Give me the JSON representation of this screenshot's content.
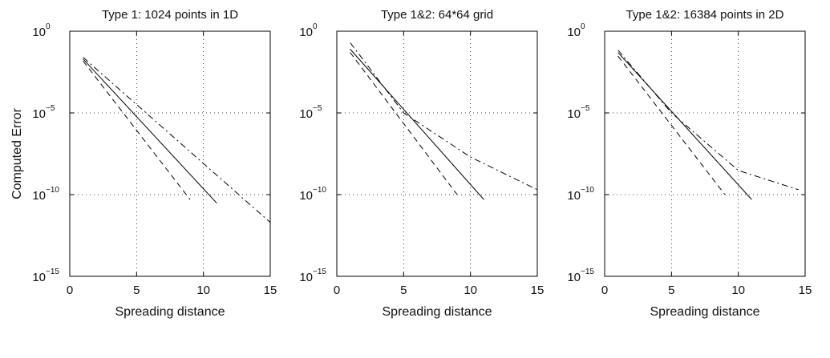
{
  "chart_data": [
    {
      "type": "line",
      "title": "Type 1: 1024 points in 1D",
      "xlabel": "Spreading distance",
      "ylabel": "Computed Error",
      "xlim": [
        0,
        15
      ],
      "ylim_log10": [
        -15,
        0
      ],
      "xticks": [
        "0",
        "5",
        "10",
        "15"
      ],
      "yscale": "log",
      "grid": true,
      "series": [
        {
          "style": "solid",
          "x": [
            1,
            11
          ],
          "y": [
            0.02,
            3e-11
          ]
        },
        {
          "style": "dashed",
          "x": [
            1,
            9
          ],
          "y": [
            0.015,
            5e-11
          ]
        },
        {
          "style": "dashdot",
          "x": [
            1,
            15
          ],
          "y": [
            0.025,
            2e-12
          ]
        }
      ]
    },
    {
      "type": "line",
      "title": "Type 1&2: 64*64 grid",
      "xlabel": "Spreading distance",
      "ylabel": "",
      "xlim": [
        0,
        15
      ],
      "ylim_log10": [
        -15,
        0
      ],
      "xticks": [
        "0",
        "5",
        "10",
        "15"
      ],
      "yscale": "log",
      "grid": true,
      "series": [
        {
          "style": "solid",
          "x": [
            1,
            11
          ],
          "y": [
            0.08,
            5e-11
          ]
        },
        {
          "style": "dashed",
          "x": [
            1,
            9
          ],
          "y": [
            0.05,
            1e-10
          ]
        },
        {
          "style": "dashdot",
          "x": [
            1,
            5,
            10,
            15
          ],
          "y": [
            0.2,
            1e-05,
            2e-08,
            2e-10
          ]
        }
      ]
    },
    {
      "type": "line",
      "title": "Type 1&2: 16384 points in 2D",
      "xlabel": "Spreading distance",
      "ylabel": "",
      "xlim": [
        0,
        15
      ],
      "ylim_log10": [
        -15,
        0
      ],
      "xticks": [
        "0",
        "5",
        "10",
        "15"
      ],
      "yscale": "log",
      "grid": true,
      "series": [
        {
          "style": "solid",
          "x": [
            1,
            11
          ],
          "y": [
            0.05,
            5e-11
          ]
        },
        {
          "style": "dashed",
          "x": [
            1,
            9
          ],
          "y": [
            0.03,
            1e-10
          ]
        },
        {
          "style": "dashdot",
          "x": [
            1,
            5,
            10,
            14.5
          ],
          "y": [
            0.07,
            1e-05,
            3e-09,
            2e-10
          ]
        }
      ]
    }
  ]
}
